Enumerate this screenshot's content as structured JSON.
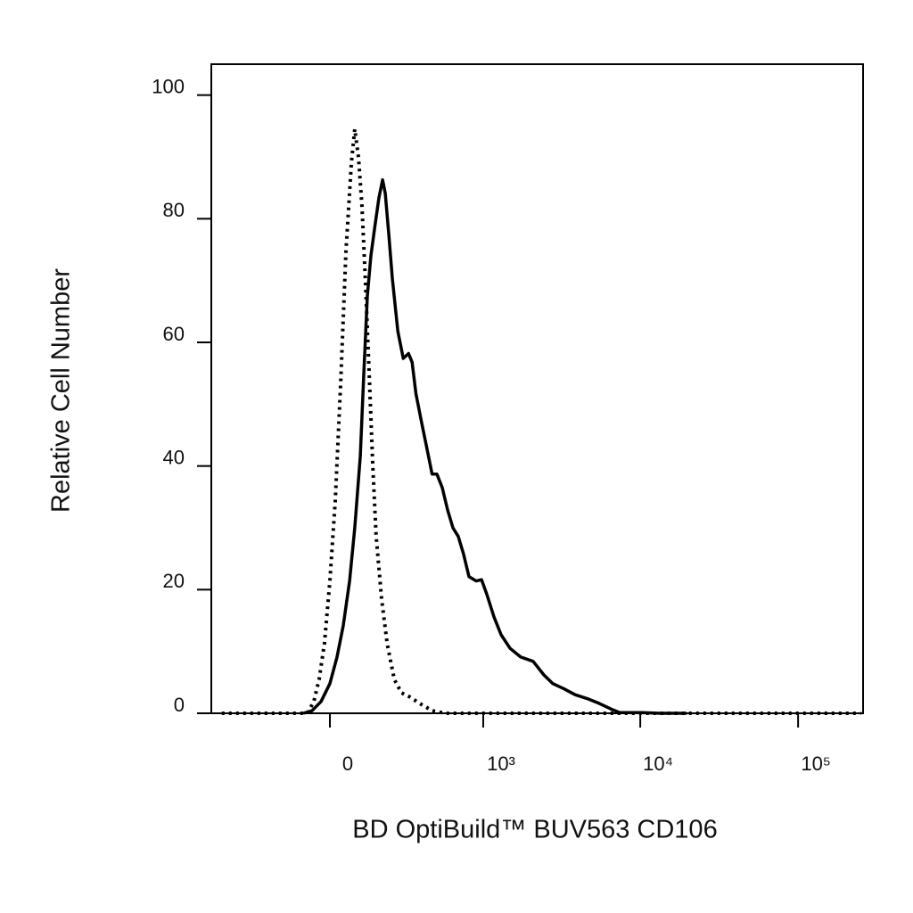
{
  "chart_data": {
    "type": "line",
    "xlabel": "BD OptiBuild™ BUV563 CD106",
    "ylabel": "Relative Cell Number",
    "xscale": "biexponential",
    "xlim": [
      -590,
      258000
    ],
    "xticks": [
      0,
      {
        "value": 1000,
        "label": "10³"
      },
      {
        "value": 10000,
        "label": "10⁴"
      },
      {
        "value": 100000,
        "label": "10⁵"
      }
    ],
    "ylim": [
      0,
      105
    ],
    "yticks": [
      0,
      20,
      40,
      60,
      80,
      100
    ],
    "series": [
      {
        "color": "#000000",
        "style": "solid",
        "x": [
          -86,
          -57,
          -28,
          0,
          22.5,
          42,
          63,
          80,
          99,
          111,
          124,
          137,
          151,
          168,
          183,
          194,
          209,
          225,
          251,
          278,
          306,
          326,
          348,
          381,
          417,
          455,
          492,
          535,
          582,
          632,
          686,
          745,
          807,
          900,
          975,
          1056,
          1173,
          1304,
          1489,
          1741,
          2091,
          2445,
          2786,
          3262,
          3866,
          4700,
          5490,
          6500,
          7400,
          10250,
          13300,
          19660
        ],
        "values": [
          0,
          0.4,
          1.9,
          4.8,
          9.1,
          14.1,
          21.4,
          30.0,
          41.6,
          54.5,
          67.5,
          74.0,
          78.4,
          83.4,
          86.3,
          84.1,
          77.6,
          70.4,
          61.8,
          57.4,
          58.2,
          56.8,
          51.7,
          47.3,
          43.0,
          38.7,
          38.7,
          36.5,
          32.9,
          30.0,
          28.6,
          25.7,
          22.1,
          21.4,
          21.6,
          19.2,
          15.6,
          12.7,
          10.5,
          9.1,
          8.4,
          6.2,
          4.8,
          4.0,
          3.0,
          2.3,
          1.6,
          0.7,
          0.1,
          0.1,
          0,
          0
        ]
      },
      {
        "color": "#000000",
        "style": "dotted",
        "x": [
          -500,
          -118,
          -72,
          -51,
          -34,
          -17,
          0,
          17,
          34,
          51,
          69,
          80,
          93,
          105,
          118,
          131,
          144,
          157,
          179,
          202,
          234,
          269,
          316,
          370,
          458,
          566,
          745,
          250000
        ],
        "values": [
          0,
          0,
          0,
          1.9,
          5.5,
          11.3,
          21.4,
          34.3,
          53.1,
          74.7,
          89.2,
          94.5,
          89.9,
          82.0,
          69.0,
          54.5,
          40.1,
          28.6,
          18.5,
          11.3,
          5.5,
          3.3,
          2.6,
          1.6,
          0.4,
          0,
          0,
          0
        ]
      }
    ]
  }
}
